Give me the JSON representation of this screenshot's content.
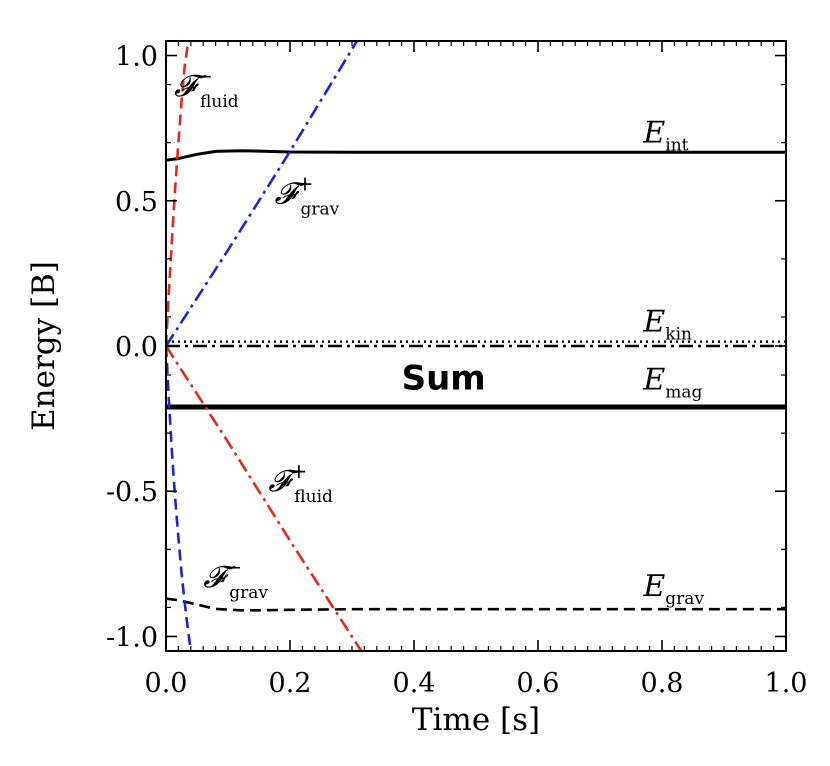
{
  "chart_data": {
    "type": "line",
    "xlabel": "Time [s]",
    "ylabel": "Energy [B]",
    "xlim": [
      0.0,
      1.0
    ],
    "ylim": [
      -1.05,
      1.05
    ],
    "x_ticks": [
      "0.0",
      "0.2",
      "0.4",
      "0.6",
      "0.8",
      "1.0"
    ],
    "y_ticks": [
      "-1.0",
      "-0.5",
      "0.0",
      "0.5",
      "1.0"
    ],
    "grid": false,
    "series": [
      {
        "name": "E_int",
        "color": "#000000",
        "style": "solid",
        "x": [
          0.0,
          0.02,
          0.05,
          0.08,
          0.12,
          0.15,
          0.2,
          0.3,
          0.5,
          0.7,
          1.0
        ],
        "y": [
          0.64,
          0.645,
          0.66,
          0.67,
          0.672,
          0.671,
          0.668,
          0.667,
          0.667,
          0.667,
          0.667
        ]
      },
      {
        "name": "E_kin",
        "color": "#000000",
        "style": "dotted",
        "x": [
          0.0,
          1.0
        ],
        "y": [
          0.015,
          0.015
        ]
      },
      {
        "name": "E_mag",
        "color": "#000000",
        "style": "dashdot",
        "x": [
          0.0,
          1.0
        ],
        "y": [
          0.0,
          0.0
        ]
      },
      {
        "name": "Sum",
        "color": "#000000",
        "style": "thick",
        "x": [
          0.0,
          1.0
        ],
        "y": [
          -0.21,
          -0.21
        ]
      },
      {
        "name": "E_grav",
        "color": "#000000",
        "style": "dashed",
        "x": [
          0.0,
          0.02,
          0.05,
          0.08,
          0.12,
          0.15,
          0.2,
          0.3,
          0.5,
          0.7,
          1.0
        ],
        "y": [
          -0.87,
          -0.875,
          -0.89,
          -0.905,
          -0.91,
          -0.91,
          -0.908,
          -0.906,
          -0.906,
          -0.906,
          -0.906
        ]
      },
      {
        "name": "F_fluid^-",
        "color": "#e8261c",
        "style": "dashed",
        "x": [
          0.0,
          0.005,
          0.01,
          0.015,
          0.02,
          0.025,
          0.03,
          0.036
        ],
        "y": [
          0.0,
          0.2,
          0.38,
          0.55,
          0.7,
          0.84,
          0.96,
          1.05
        ]
      },
      {
        "name": "F_grav^+",
        "color": "#1c25d6",
        "style": "dashdot",
        "x": [
          0.0,
          0.1,
          0.2,
          0.308
        ],
        "y": [
          0.0,
          0.33,
          0.67,
          1.05
        ]
      },
      {
        "name": "F_fluid^+",
        "color": "#e8261c",
        "style": "dashdot",
        "x": [
          0.0,
          0.1,
          0.2,
          0.315
        ],
        "y": [
          0.0,
          -0.33,
          -0.67,
          -1.05
        ]
      },
      {
        "name": "F_grav^-",
        "color": "#1c25d6",
        "style": "dashed",
        "x": [
          0.0,
          0.005,
          0.01,
          0.015,
          0.02,
          0.025,
          0.03,
          0.035,
          0.04
        ],
        "y": [
          0.0,
          -0.2,
          -0.38,
          -0.53,
          -0.66,
          -0.78,
          -0.88,
          -0.97,
          -1.05
        ]
      }
    ],
    "annotations": [
      {
        "main": "𝓕",
        "sup": "−",
        "sub": "fluid",
        "x": 0.013,
        "y": 0.86
      },
      {
        "main": "E",
        "sup": "",
        "sub": "int",
        "x": 0.77,
        "y": 0.7
      },
      {
        "main": "𝓕",
        "sup": "+",
        "sub": "grav",
        "x": 0.175,
        "y": 0.49
      },
      {
        "main": "E",
        "sup": "",
        "sub": "kin",
        "x": 0.77,
        "y": 0.05
      },
      {
        "main": "E",
        "sup": "",
        "sub": "mag",
        "x": 0.77,
        "y": -0.15
      },
      {
        "main": "𝓕",
        "sup": "+",
        "sub": "fluid",
        "x": 0.165,
        "y": -0.5
      },
      {
        "main": "𝓕",
        "sup": "−",
        "sub": "grav",
        "x": 0.06,
        "y": -0.83
      },
      {
        "main": "E",
        "sup": "",
        "sub": "grav",
        "x": 0.77,
        "y": -0.86
      }
    ],
    "sum_label": "Sum",
    "sum_label_position": {
      "x": 0.38,
      "y": -0.15
    }
  }
}
